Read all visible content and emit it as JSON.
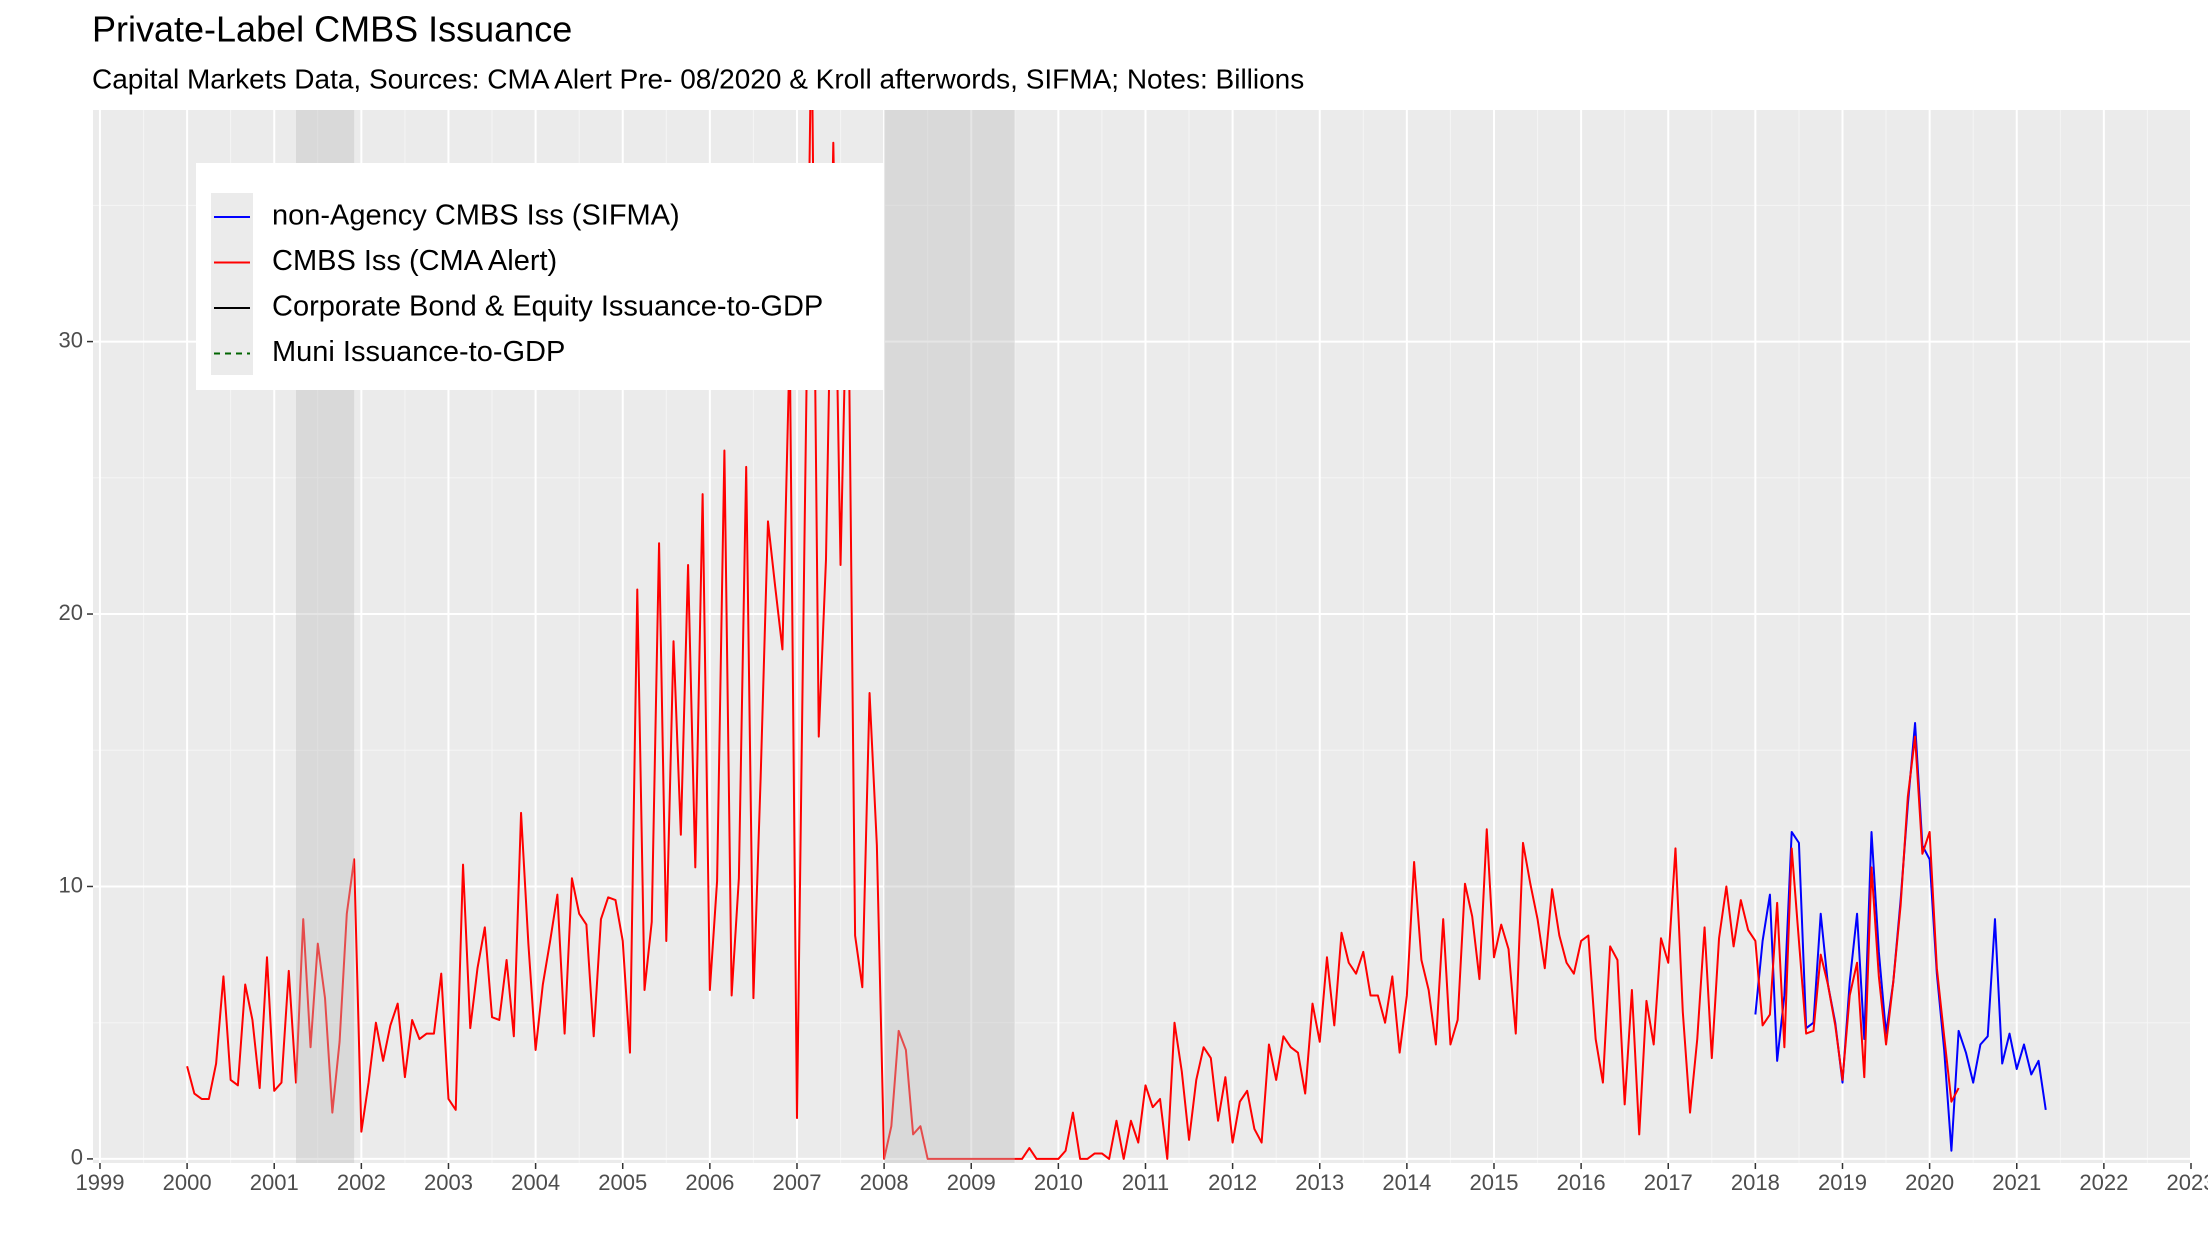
{
  "chart_data": {
    "type": "line",
    "title": "Private-Label CMBS Issuance",
    "subtitle": "Capital Markets Data, Sources: CMA Alert Pre- 08/2020 & Kroll afterwords, SIFMA; Notes: Billions",
    "xlim": [
      1998.92,
      2023.0
    ],
    "xticks": [
      1999,
      2000,
      2001,
      2002,
      2003,
      2004,
      2005,
      2006,
      2007,
      2008,
      2009,
      2010,
      2011,
      2012,
      2013,
      2014,
      2015,
      2016,
      2017,
      2018,
      2019,
      2020,
      2021,
      2022,
      2023
    ],
    "ylim": [
      -0.15,
      38.5
    ],
    "yticks": [
      0,
      10,
      20,
      30
    ],
    "grid": true,
    "minor_grid": true,
    "legend": "top-left",
    "shaded_regions": [
      [
        2001.25,
        2001.917
      ],
      [
        2008.0,
        2009.5
      ]
    ],
    "shade_color": "#bfbfbf",
    "series": [
      {
        "name": "non-Agency CMBS Iss (SIFMA)",
        "color": "#0000ff",
        "dash": "solid",
        "x": [
          2018,
          2018.083,
          2018.167,
          2018.25,
          2018.333,
          2018.417,
          2018.5,
          2018.583,
          2018.667,
          2018.75,
          2018.833,
          2018.917,
          2019,
          2019.083,
          2019.167,
          2019.25,
          2019.333,
          2019.417,
          2019.5,
          2019.583,
          2019.667,
          2019.75,
          2019.833,
          2019.917,
          2020,
          2020.083,
          2020.167,
          2020.25,
          2020.333,
          2020.417,
          2020.5,
          2020.583,
          2020.667,
          2020.75,
          2020.833,
          2020.917,
          2021,
          2021.083,
          2021.167,
          2021.25,
          2021.333
        ],
        "values": [
          5.3,
          8.0,
          9.7,
          3.6,
          6.0,
          12.0,
          11.6,
          4.8,
          5.0,
          9.0,
          6.4,
          5.0,
          2.8,
          6.5,
          9.0,
          4.4,
          12.0,
          7.6,
          4.6,
          6.5,
          9.5,
          13.0,
          16.0,
          11.5,
          11.0,
          6.8,
          4.0,
          0.3,
          4.7,
          3.9,
          2.8,
          4.2,
          4.5,
          8.8,
          3.5,
          4.6,
          3.3,
          4.2,
          3.1,
          3.6,
          1.8
        ]
      },
      {
        "name": "CMBS Iss (CMA Alert)",
        "color": "#ff0000",
        "dash": "solid",
        "x": [
          2000,
          2000.083,
          2000.167,
          2000.25,
          2000.333,
          2000.417,
          2000.5,
          2000.583,
          2000.667,
          2000.75,
          2000.833,
          2000.917,
          2001,
          2001.083,
          2001.167,
          2001.25,
          2001.333,
          2001.417,
          2001.5,
          2001.583,
          2001.667,
          2001.75,
          2001.833,
          2001.917,
          2002,
          2002.083,
          2002.167,
          2002.25,
          2002.333,
          2002.417,
          2002.5,
          2002.583,
          2002.667,
          2002.75,
          2002.833,
          2002.917,
          2003,
          2003.083,
          2003.167,
          2003.25,
          2003.333,
          2003.417,
          2003.5,
          2003.583,
          2003.667,
          2003.75,
          2003.833,
          2003.917,
          2004,
          2004.083,
          2004.167,
          2004.25,
          2004.333,
          2004.417,
          2004.5,
          2004.583,
          2004.667,
          2004.75,
          2004.833,
          2004.917,
          2005,
          2005.083,
          2005.167,
          2005.25,
          2005.333,
          2005.417,
          2005.5,
          2005.583,
          2005.667,
          2005.75,
          2005.833,
          2005.917,
          2006,
          2006.083,
          2006.167,
          2006.25,
          2006.333,
          2006.417,
          2006.5,
          2006.583,
          2006.667,
          2006.75,
          2006.833,
          2006.917,
          2007,
          2007.083,
          2007.167,
          2007.25,
          2007.333,
          2007.417,
          2007.5,
          2007.583,
          2007.667,
          2007.75,
          2007.833,
          2007.917,
          2008,
          2008.083,
          2008.167,
          2008.25,
          2008.333,
          2008.417,
          2008.5,
          2008.583,
          2008.667,
          2008.75,
          2008.833,
          2008.917,
          2009,
          2009.083,
          2009.167,
          2009.25,
          2009.333,
          2009.417,
          2009.5,
          2009.583,
          2009.667,
          2009.75,
          2009.833,
          2009.917,
          2010,
          2010.083,
          2010.167,
          2010.25,
          2010.333,
          2010.417,
          2010.5,
          2010.583,
          2010.667,
          2010.75,
          2010.833,
          2010.917,
          2011,
          2011.083,
          2011.167,
          2011.25,
          2011.333,
          2011.417,
          2011.5,
          2011.583,
          2011.667,
          2011.75,
          2011.833,
          2011.917,
          2012,
          2012.083,
          2012.167,
          2012.25,
          2012.333,
          2012.417,
          2012.5,
          2012.583,
          2012.667,
          2012.75,
          2012.833,
          2012.917,
          2013,
          2013.083,
          2013.167,
          2013.25,
          2013.333,
          2013.417,
          2013.5,
          2013.583,
          2013.667,
          2013.75,
          2013.833,
          2013.917,
          2014,
          2014.083,
          2014.167,
          2014.25,
          2014.333,
          2014.417,
          2014.5,
          2014.583,
          2014.667,
          2014.75,
          2014.833,
          2014.917,
          2015,
          2015.083,
          2015.167,
          2015.25,
          2015.333,
          2015.417,
          2015.5,
          2015.583,
          2015.667,
          2015.75,
          2015.833,
          2015.917,
          2016,
          2016.083,
          2016.167,
          2016.25,
          2016.333,
          2016.417,
          2016.5,
          2016.583,
          2016.667,
          2016.75,
          2016.833,
          2016.917,
          2017,
          2017.083,
          2017.167,
          2017.25,
          2017.333,
          2017.417,
          2017.5,
          2017.583,
          2017.667,
          2017.75,
          2017.833,
          2017.917,
          2018,
          2018.083,
          2018.167,
          2018.25,
          2018.333,
          2018.417,
          2018.5,
          2018.583,
          2018.667,
          2018.75,
          2018.833,
          2018.917,
          2019,
          2019.083,
          2019.167,
          2019.25,
          2019.333,
          2019.417,
          2019.5,
          2019.583,
          2019.667,
          2019.75,
          2019.833,
          2019.917,
          2020,
          2020.083,
          2020.167,
          2020.25,
          2020.333
        ],
        "values": [
          3.4,
          2.4,
          2.2,
          2.2,
          3.5,
          6.7,
          2.9,
          2.7,
          6.4,
          5.1,
          2.6,
          7.4,
          2.5,
          2.8,
          6.9,
          2.8,
          8.8,
          4.1,
          7.9,
          5.9,
          1.7,
          4.3,
          9.0,
          11.0,
          1.0,
          2.8,
          5.0,
          3.6,
          4.9,
          5.7,
          3.0,
          5.1,
          4.4,
          4.6,
          4.6,
          6.8,
          2.2,
          1.8,
          10.8,
          4.8,
          7.0,
          8.5,
          5.2,
          5.1,
          7.3,
          4.5,
          12.7,
          7.9,
          4.0,
          6.4,
          8.0,
          9.7,
          4.6,
          10.3,
          9.0,
          8.6,
          4.5,
          8.8,
          9.6,
          9.5,
          8.0,
          3.9,
          20.9,
          6.2,
          8.7,
          22.6,
          8.0,
          19.0,
          11.9,
          21.8,
          10.7,
          24.4,
          6.2,
          10.2,
          26.0,
          6.0,
          10.3,
          25.4,
          5.9,
          14.0,
          23.4,
          21.0,
          18.7,
          30.0,
          1.5,
          22.0,
          42.0,
          15.5,
          22.0,
          37.3,
          21.8,
          34.0,
          8.2,
          6.3,
          17.1,
          11.5,
          0.0,
          1.2,
          4.7,
          4.0,
          0.9,
          1.2,
          0,
          0,
          0,
          0,
          0,
          0,
          0,
          0,
          0,
          0,
          0,
          0,
          0,
          0,
          0.4,
          0,
          0,
          0,
          0,
          0.3,
          1.7,
          0,
          0,
          0.2,
          0.2,
          0,
          1.4,
          0,
          1.4,
          0.6,
          2.7,
          1.9,
          2.2,
          0,
          5.0,
          3.2,
          0.7,
          2.9,
          4.1,
          3.7,
          1.4,
          3.0,
          0.6,
          2.1,
          2.5,
          1.1,
          0.6,
          4.2,
          2.9,
          4.5,
          4.1,
          3.9,
          2.4,
          5.7,
          4.3,
          7.4,
          4.9,
          8.3,
          7.2,
          6.8,
          7.6,
          6.0,
          6.0,
          5.0,
          6.7,
          3.9,
          6.0,
          10.9,
          7.3,
          6.2,
          4.2,
          8.8,
          4.2,
          5.1,
          10.1,
          8.9,
          6.6,
          12.1,
          7.4,
          8.6,
          7.7,
          4.6,
          11.6,
          10.1,
          8.8,
          7.0,
          9.9,
          8.2,
          7.2,
          6.8,
          8.0,
          8.2,
          4.4,
          2.8,
          7.8,
          7.3,
          2.0,
          6.2,
          0.9,
          5.8,
          4.2,
          8.1,
          7.2,
          11.4,
          5.4,
          1.7,
          4.4,
          8.5,
          3.7,
          8.1,
          10.0,
          7.8,
          9.5,
          8.4,
          8.0,
          4.9,
          5.3,
          9.4,
          4.1,
          11.4,
          8.0,
          4.6,
          4.7,
          7.5,
          6.4,
          4.9,
          2.9,
          6.0,
          7.2,
          3.0,
          10.7,
          6.7,
          4.2,
          6.5,
          9.3,
          13.3,
          15.5,
          11.2,
          12.0,
          7.0,
          4.5,
          2.1,
          2.6
        ]
      },
      {
        "name": "Corporate Bond & Equity Issuance-to-GDP",
        "color": "#000000",
        "dash": "solid",
        "x": [],
        "values": []
      },
      {
        "name": "Muni Issuance-to-GDP",
        "color": "#006400",
        "dash": "dashed",
        "x": [],
        "values": []
      }
    ]
  }
}
